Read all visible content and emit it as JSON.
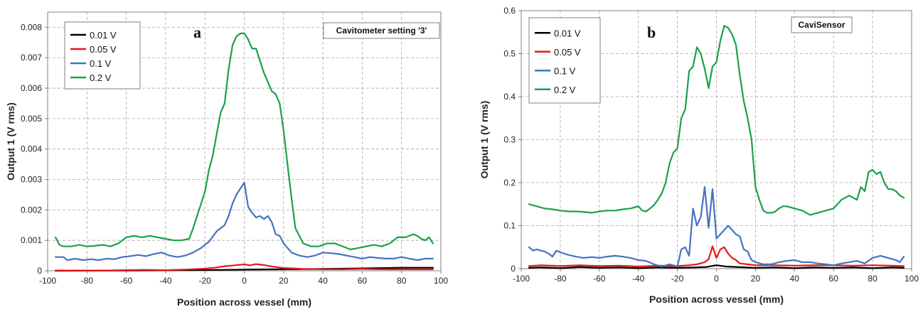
{
  "chart_data": [
    {
      "type": "line",
      "panel_letter": "a",
      "setting_label": "Cavitometer setting '3'",
      "xlabel": "Position across vessel (mm)",
      "ylabel": "Output 1 (V rms)",
      "xlim": [
        -100,
        100
      ],
      "ylim": [
        0,
        0.0085
      ],
      "xticks": [
        -100,
        -80,
        -60,
        -40,
        -20,
        0,
        20,
        40,
        60,
        80,
        100
      ],
      "yticks": [
        0,
        0.001,
        0.002,
        0.003,
        0.004,
        0.005,
        0.006,
        0.007,
        0.008
      ],
      "ytick_labels": [
        "0",
        "0.001",
        "0.002",
        "0.003",
        "0.004",
        "0.005",
        "0.006",
        "0.007",
        "0.008"
      ],
      "grid": true,
      "legend_position": "top-left",
      "series": [
        {
          "name": "0.01 V",
          "color": "#000000",
          "x": [
            -96,
            -60,
            -30,
            -10,
            0,
            20,
            40,
            60,
            80,
            96
          ],
          "y": [
            0.0,
            1e-05,
            2e-05,
            3e-05,
            4e-05,
            5e-05,
            6e-05,
            8e-05,
            0.0001,
            0.0001
          ]
        },
        {
          "name": "0.05 V",
          "color": "#e8161b",
          "x": [
            -96,
            -70,
            -60,
            -50,
            -40,
            -30,
            -20,
            -15,
            -10,
            -5,
            0,
            3,
            6,
            10,
            15,
            20,
            30,
            40,
            50,
            60,
            70,
            80,
            96
          ],
          "y": [
            1e-05,
            1e-05,
            2e-05,
            3e-05,
            2e-05,
            4e-05,
            7e-05,
            0.0001,
            0.00015,
            0.00018,
            0.00021,
            0.00018,
            0.00022,
            0.00019,
            0.00013,
            9e-05,
            6e-05,
            5e-05,
            5e-05,
            6e-05,
            5e-05,
            5e-05,
            5e-05
          ]
        },
        {
          "name": "0.1 V",
          "color": "#4472c4",
          "x": [
            -96,
            -92,
            -90,
            -86,
            -82,
            -78,
            -74,
            -70,
            -66,
            -62,
            -58,
            -54,
            -50,
            -46,
            -42,
            -38,
            -34,
            -30,
            -26,
            -22,
            -18,
            -14,
            -10,
            -8,
            -6,
            -4,
            -2,
            0,
            2,
            4,
            6,
            8,
            10,
            12,
            14,
            16,
            18,
            20,
            24,
            28,
            32,
            36,
            40,
            44,
            48,
            52,
            56,
            60,
            64,
            68,
            72,
            76,
            80,
            84,
            88,
            92,
            96
          ],
          "y": [
            0.00045,
            0.00045,
            0.00035,
            0.0004,
            0.00035,
            0.00038,
            0.00035,
            0.0004,
            0.00038,
            0.00045,
            0.00048,
            0.00052,
            0.00048,
            0.00055,
            0.0006,
            0.0005,
            0.00045,
            0.0005,
            0.0006,
            0.00075,
            0.00095,
            0.0013,
            0.0015,
            0.0018,
            0.0022,
            0.0025,
            0.0027,
            0.0029,
            0.0021,
            0.0019,
            0.00175,
            0.0018,
            0.0017,
            0.0018,
            0.0016,
            0.0012,
            0.00115,
            0.0009,
            0.0006,
            0.0005,
            0.00045,
            0.0005,
            0.0006,
            0.00058,
            0.00055,
            0.0005,
            0.00045,
            0.0004,
            0.00045,
            0.00042,
            0.0004,
            0.0004,
            0.00045,
            0.0004,
            0.00035,
            0.0004,
            0.0004
          ]
        },
        {
          "name": "0.2 V",
          "color": "#1aa14a",
          "x": [
            -96,
            -94,
            -92,
            -88,
            -84,
            -80,
            -76,
            -72,
            -68,
            -64,
            -60,
            -56,
            -52,
            -48,
            -44,
            -40,
            -36,
            -32,
            -28,
            -26,
            -24,
            -22,
            -20,
            -18,
            -16,
            -14,
            -12,
            -10,
            -8,
            -6,
            -4,
            -2,
            0,
            2,
            4,
            6,
            8,
            10,
            12,
            14,
            16,
            18,
            20,
            22,
            24,
            26,
            30,
            34,
            38,
            42,
            46,
            50,
            54,
            58,
            62,
            66,
            70,
            74,
            78,
            82,
            86,
            88,
            90,
            92,
            94,
            96
          ],
          "y": [
            0.0011,
            0.00085,
            0.0008,
            0.0008,
            0.00085,
            0.0008,
            0.00082,
            0.00085,
            0.0008,
            0.0009,
            0.0011,
            0.00115,
            0.0011,
            0.00115,
            0.0011,
            0.00105,
            0.001,
            0.001,
            0.00105,
            0.0014,
            0.0018,
            0.0022,
            0.0026,
            0.0033,
            0.0038,
            0.0045,
            0.0052,
            0.0055,
            0.0066,
            0.0074,
            0.0077,
            0.0078,
            0.0078,
            0.0076,
            0.0073,
            0.0073,
            0.0069,
            0.0065,
            0.0062,
            0.0059,
            0.0058,
            0.0055,
            0.0046,
            0.0035,
            0.0024,
            0.0014,
            0.0009,
            0.0008,
            0.0008,
            0.0009,
            0.0009,
            0.0008,
            0.0007,
            0.00075,
            0.0008,
            0.00085,
            0.0008,
            0.0009,
            0.0011,
            0.0011,
            0.0012,
            0.00115,
            0.00105,
            0.001,
            0.0011,
            0.0009
          ]
        }
      ]
    },
    {
      "type": "line",
      "panel_letter": "b",
      "setting_label": "CaviSensor",
      "xlabel": "Position across vessel (mm)",
      "ylabel": "Output 1 (V rms)",
      "xlim": [
        -100,
        100
      ],
      "ylim": [
        0,
        0.6
      ],
      "xticks": [
        -100,
        -80,
        -60,
        -40,
        -20,
        0,
        20,
        40,
        60,
        80,
        100
      ],
      "yticks": [
        0,
        0.1,
        0.2,
        0.3,
        0.4,
        0.5,
        0.6
      ],
      "ytick_labels": [
        "0",
        "0.1",
        "0.2",
        "0.3",
        "0.4",
        "0.5",
        "0.6"
      ],
      "grid": true,
      "legend_position": "top-left",
      "series": [
        {
          "name": "0.01 V",
          "color": "#000000",
          "x": [
            -96,
            -90,
            -80,
            -70,
            -60,
            -50,
            -40,
            -30,
            -20,
            -10,
            -5,
            0,
            5,
            10,
            20,
            30,
            40,
            50,
            60,
            70,
            80,
            90,
            96
          ],
          "y": [
            0.002,
            0.003,
            0.001,
            0.004,
            0.002,
            0.003,
            0.001,
            0.003,
            0.002,
            0.003,
            0.004,
            0.008,
            0.005,
            0.004,
            0.002,
            0.003,
            0.001,
            0.003,
            0.002,
            0.003,
            0.001,
            0.003,
            0.002
          ]
        },
        {
          "name": "0.05 V",
          "color": "#e8161b",
          "x": [
            -96,
            -90,
            -80,
            -70,
            -60,
            -50,
            -40,
            -30,
            -20,
            -14,
            -10,
            -6,
            -4,
            -2,
            0,
            2,
            4,
            6,
            8,
            10,
            12,
            16,
            20,
            30,
            40,
            50,
            60,
            70,
            80,
            90,
            96
          ],
          "y": [
            0.006,
            0.008,
            0.006,
            0.008,
            0.006,
            0.007,
            0.005,
            0.007,
            0.006,
            0.008,
            0.01,
            0.015,
            0.022,
            0.052,
            0.025,
            0.045,
            0.05,
            0.035,
            0.025,
            0.02,
            0.012,
            0.01,
            0.008,
            0.008,
            0.007,
            0.008,
            0.008,
            0.007,
            0.008,
            0.007,
            0.006
          ]
        },
        {
          "name": "0.1 V",
          "color": "#4472c4",
          "x": [
            -96,
            -94,
            -92,
            -90,
            -88,
            -86,
            -84,
            -82,
            -80,
            -76,
            -72,
            -68,
            -64,
            -60,
            -56,
            -52,
            -48,
            -44,
            -40,
            -36,
            -32,
            -28,
            -24,
            -20,
            -18,
            -16,
            -14,
            -12,
            -10,
            -8,
            -6,
            -4,
            -2,
            0,
            2,
            4,
            6,
            8,
            10,
            12,
            14,
            16,
            18,
            20,
            24,
            28,
            32,
            36,
            40,
            44,
            48,
            52,
            56,
            60,
            64,
            68,
            72,
            76,
            80,
            84,
            88,
            92,
            94,
            96
          ],
          "y": [
            0.05,
            0.042,
            0.045,
            0.042,
            0.04,
            0.035,
            0.028,
            0.042,
            0.038,
            0.032,
            0.028,
            0.025,
            0.027,
            0.025,
            0.028,
            0.03,
            0.028,
            0.025,
            0.02,
            0.018,
            0.01,
            0.005,
            0.01,
            0.005,
            0.045,
            0.05,
            0.03,
            0.14,
            0.1,
            0.12,
            0.19,
            0.095,
            0.185,
            0.07,
            0.08,
            0.09,
            0.1,
            0.09,
            0.08,
            0.075,
            0.045,
            0.04,
            0.02,
            0.015,
            0.01,
            0.01,
            0.015,
            0.018,
            0.02,
            0.015,
            0.015,
            0.012,
            0.01,
            0.008,
            0.012,
            0.015,
            0.018,
            0.012,
            0.025,
            0.03,
            0.025,
            0.02,
            0.015,
            0.028
          ]
        },
        {
          "name": "0.2 V",
          "color": "#1aa14a",
          "x": [
            -96,
            -92,
            -88,
            -84,
            -80,
            -76,
            -72,
            -68,
            -64,
            -60,
            -56,
            -52,
            -48,
            -44,
            -40,
            -38,
            -36,
            -34,
            -32,
            -30,
            -28,
            -26,
            -24,
            -22,
            -20,
            -18,
            -16,
            -14,
            -12,
            -10,
            -8,
            -6,
            -4,
            -2,
            0,
            2,
            4,
            6,
            8,
            10,
            12,
            14,
            16,
            18,
            20,
            22,
            24,
            26,
            28,
            30,
            32,
            34,
            36,
            40,
            44,
            48,
            52,
            56,
            60,
            64,
            68,
            72,
            74,
            76,
            78,
            80,
            82,
            84,
            86,
            88,
            90,
            92,
            94,
            96
          ],
          "y": [
            0.15,
            0.145,
            0.14,
            0.138,
            0.135,
            0.133,
            0.133,
            0.132,
            0.13,
            0.133,
            0.135,
            0.135,
            0.138,
            0.14,
            0.145,
            0.135,
            0.133,
            0.14,
            0.148,
            0.16,
            0.175,
            0.2,
            0.245,
            0.27,
            0.28,
            0.35,
            0.37,
            0.46,
            0.47,
            0.515,
            0.5,
            0.465,
            0.42,
            0.47,
            0.48,
            0.53,
            0.565,
            0.56,
            0.545,
            0.52,
            0.45,
            0.39,
            0.35,
            0.3,
            0.19,
            0.16,
            0.135,
            0.13,
            0.13,
            0.132,
            0.14,
            0.145,
            0.145,
            0.14,
            0.135,
            0.125,
            0.13,
            0.135,
            0.14,
            0.16,
            0.17,
            0.16,
            0.19,
            0.18,
            0.225,
            0.23,
            0.22,
            0.225,
            0.2,
            0.185,
            0.185,
            0.18,
            0.17,
            0.165
          ]
        }
      ]
    }
  ]
}
